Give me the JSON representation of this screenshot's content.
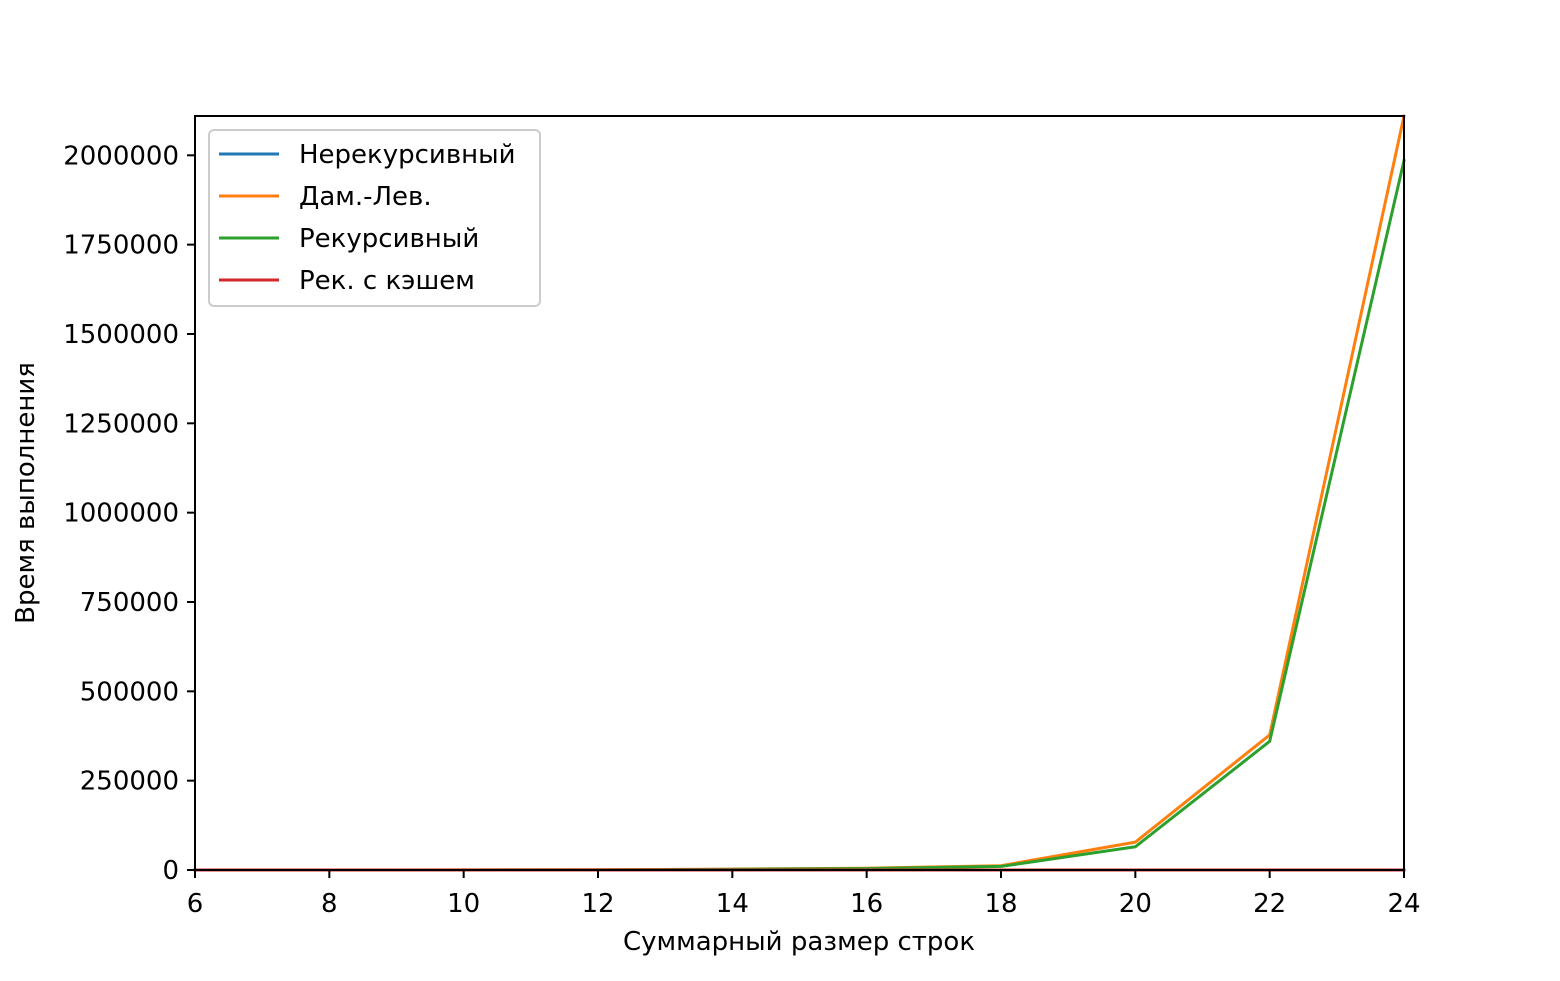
{
  "chart_data": {
    "type": "line",
    "title": "",
    "xlabel": "Суммарный размер строк",
    "ylabel": "Время выполнения",
    "x": [
      6,
      8,
      10,
      12,
      14,
      16,
      18,
      20,
      22,
      24
    ],
    "xlim": [
      6,
      24
    ],
    "ylim": [
      0,
      2110000
    ],
    "x_ticks": [
      6,
      8,
      10,
      12,
      14,
      16,
      18,
      20,
      22,
      24
    ],
    "x_tick_labels": [
      "6",
      "8",
      "10",
      "12",
      "14",
      "16",
      "18",
      "20",
      "22",
      "24"
    ],
    "y_ticks": [
      0,
      250000,
      500000,
      750000,
      1000000,
      1250000,
      1500000,
      1750000,
      2000000
    ],
    "y_tick_labels": [
      "0",
      "250000",
      "500000",
      "750000",
      "1000000",
      "1250000",
      "1500000",
      "1750000",
      "2000000"
    ],
    "grid": false,
    "legend_position": "top-left",
    "series": [
      {
        "name": "Нерекурсивный",
        "color": "#1f77b4",
        "values": [
          10,
          15,
          20,
          25,
          30,
          35,
          40,
          50,
          55,
          60
        ]
      },
      {
        "name": "Дам.-Лев.",
        "color": "#ff7f0e",
        "values": [
          20,
          60,
          200,
          700,
          2500,
          5000,
          12000,
          78000,
          378000,
          2110000
        ]
      },
      {
        "name": "Рекурсивный",
        "color": "#2ca02c",
        "values": [
          15,
          50,
          150,
          500,
          1800,
          4000,
          10000,
          65000,
          360000,
          1985000
        ]
      },
      {
        "name": "Рек. с кэшем",
        "color": "#d62728",
        "values": [
          20,
          30,
          40,
          50,
          60,
          70,
          80,
          90,
          100,
          110
        ]
      }
    ]
  }
}
